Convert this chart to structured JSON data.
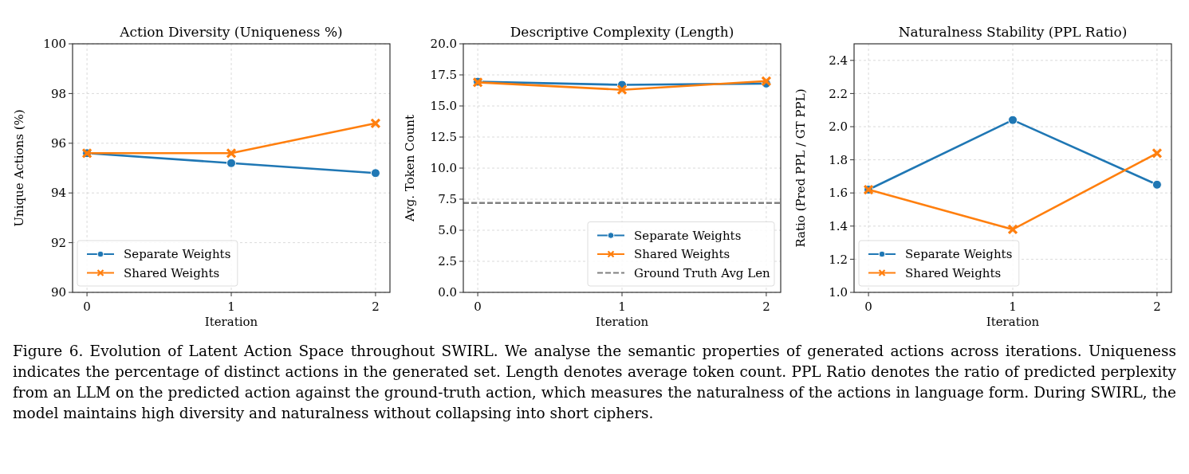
{
  "chart_data": [
    {
      "type": "line",
      "title": "Action Diversity (Uniqueness %)",
      "xlabel": "Iteration",
      "ylabel": "Unique Actions (%)",
      "x": [
        0,
        1,
        2
      ],
      "xlim": [
        -0.1,
        2.1
      ],
      "xticks": [
        0,
        1,
        2
      ],
      "ylim": [
        90,
        100
      ],
      "yticks": [
        90,
        92,
        94,
        96,
        98,
        100
      ],
      "grid": true,
      "legend": "bottom left",
      "series": [
        {
          "name": "Separate Weights",
          "color": "#1f77b4",
          "marker": "circle",
          "values": [
            95.6,
            95.2,
            94.8
          ]
        },
        {
          "name": "Shared Weights",
          "color": "#ff7f0e",
          "marker": "cross",
          "values": [
            95.6,
            95.6,
            96.8
          ]
        }
      ],
      "annotations": [
        "Figure 6. Evolution of Latent Action Space throughout SWIRL. We analyse the semantic properties of generated actions across iterations. Uniqueness indicates the percentage of distinct actions in the generated set. Length denotes average token count. PPL Ratio denotes the ratio of predicted perplexity from an LLM on the predicted action against the ground-truth action, which measures the naturalness of the actions in language form. During SWIRL, the model maintains high diversity and naturalness without collapsing into short ciphers."
      ]
    },
    {
      "type": "line",
      "title": "Descriptive Complexity (Length)",
      "xlabel": "Iteration",
      "ylabel": "Avg. Token Count",
      "x": [
        0,
        1,
        2
      ],
      "xlim": [
        -0.1,
        2.1
      ],
      "xticks": [
        0,
        1,
        2
      ],
      "ylim": [
        0,
        20
      ],
      "yticks": [
        {
          "value": 0,
          "label": "0.0"
        },
        2.5,
        {
          "value": 5,
          "label": "5.0"
        },
        7.5,
        {
          "value": 10,
          "label": "10.0"
        },
        12.5,
        {
          "value": 15,
          "label": "15.0"
        },
        17.5,
        {
          "value": 20,
          "label": "20.0"
        }
      ],
      "grid": true,
      "legend": "bottom right",
      "series": [
        {
          "name": "Separate Weights",
          "color": "#1f77b4",
          "marker": "circle",
          "values": [
            16.95,
            16.7,
            16.8
          ]
        },
        {
          "name": "Shared Weights",
          "color": "#ff7f0e",
          "marker": "cross",
          "values": [
            16.9,
            16.3,
            17.0
          ]
        }
      ],
      "ref_lines": [
        {
          "axis": "y",
          "value": 7.2,
          "label": "Ground Truth Avg Len",
          "color": "#808080",
          "line_style": "dashed"
        }
      ]
    },
    {
      "type": "line",
      "title": "Naturalness Stability (PPL Ratio)",
      "xlabel": "Iteration",
      "ylabel": "Ratio (Pred PPL / GT PPL)",
      "x": [
        0,
        1,
        2
      ],
      "xlim": [
        -0.1,
        2.1
      ],
      "xticks": [
        0,
        1,
        2
      ],
      "ylim": [
        1.0,
        2.5
      ],
      "yticks": [
        {
          "value": 1,
          "label": "1.0"
        },
        1.2,
        1.4,
        1.6,
        1.8,
        {
          "value": 2,
          "label": "2.0"
        },
        2.2,
        2.4
      ],
      "grid": true,
      "legend": "bottom left",
      "series": [
        {
          "name": "Separate Weights",
          "color": "#1f77b4",
          "marker": "circle",
          "values": [
            1.62,
            2.04,
            1.65
          ]
        },
        {
          "name": "Shared Weights",
          "color": "#ff7f0e",
          "marker": "cross",
          "values": [
            1.62,
            1.38,
            1.84
          ]
        }
      ]
    }
  ]
}
